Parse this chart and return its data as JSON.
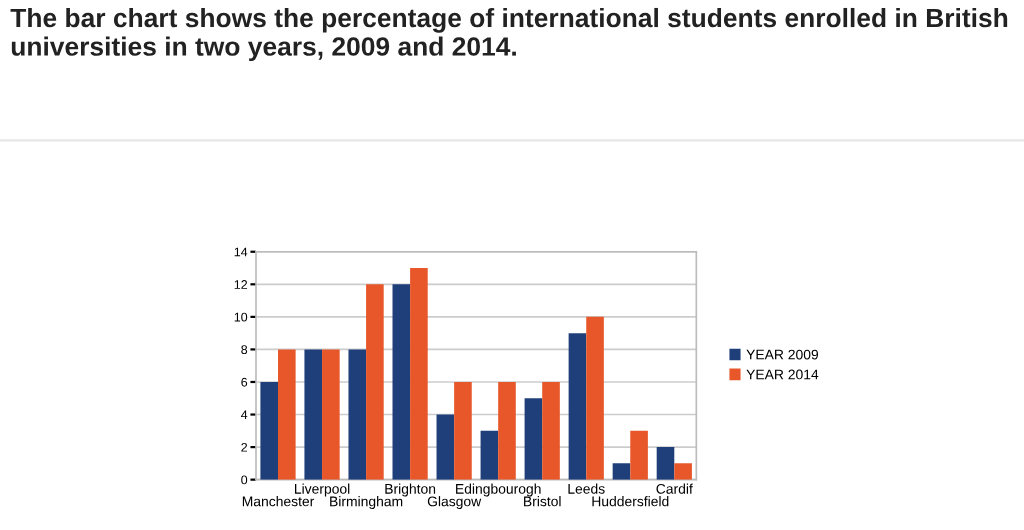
{
  "chart_data": {
    "type": "bar",
    "title": "The bar chart shows the percentage of international students enrolled in British universities in two years, 2009 and 2014.",
    "categories": [
      "Manchester",
      "Liverpool",
      "Birmingham",
      "Brighton",
      "Glasgow",
      "Edingbourogh",
      "Bristol",
      "Leeds",
      "Huddersfield",
      "Cardif"
    ],
    "series": [
      {
        "name": "YEAR 2009",
        "color": "#1f3f7a",
        "values": [
          6,
          8,
          8,
          12,
          4,
          3,
          5,
          9,
          1,
          2
        ]
      },
      {
        "name": "YEAR 2014",
        "color": "#e8572a",
        "values": [
          8,
          8,
          12,
          13,
          6,
          6,
          6,
          10,
          3,
          1
        ]
      }
    ],
    "ylim": [
      0,
      14
    ],
    "yticks": [
      0,
      2,
      4,
      6,
      8,
      10,
      12,
      14
    ],
    "grid": "y",
    "legend": "right"
  }
}
